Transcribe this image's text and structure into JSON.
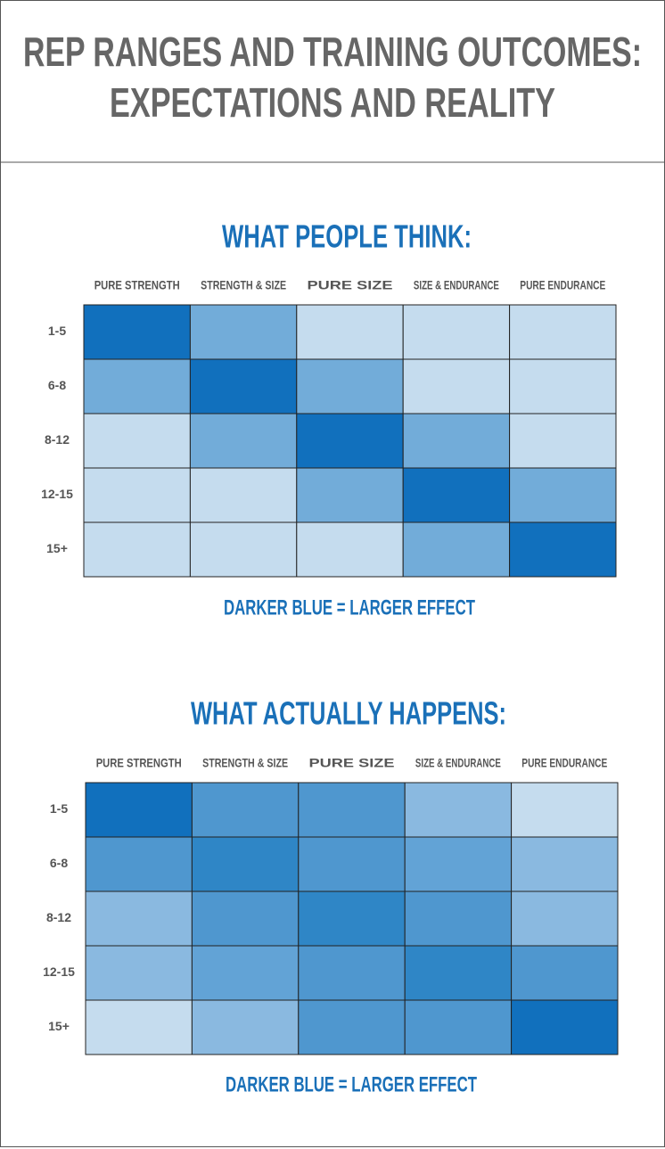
{
  "title": [
    "REP RANGES AND TRAINING OUTCOMES:",
    "EXPECTATIONS AND REALITY"
  ],
  "chart_data": [
    {
      "type": "heatmap",
      "title": "WHAT PEOPLE THINK:",
      "columns": [
        "PURE STRENGTH",
        "STRENGTH & SIZE",
        "PURE SIZE",
        "SIZE & ENDURANCE",
        "PURE ENDURANCE"
      ],
      "rows": [
        "1-5",
        "6-8",
        "8-12",
        "12-15",
        "15+"
      ],
      "colors": [
        [
          "#1170bd",
          "#72acd9",
          "#c5dcee",
          "#c5dcee",
          "#c5dcee"
        ],
        [
          "#72acd9",
          "#1170bd",
          "#72acd9",
          "#c5dcee",
          "#c5dcee"
        ],
        [
          "#c5dcee",
          "#72acd9",
          "#1170bd",
          "#72acd9",
          "#c5dcee"
        ],
        [
          "#c5dcee",
          "#c5dcee",
          "#72acd9",
          "#1170bd",
          "#72acd9"
        ],
        [
          "#c5dcee",
          "#c5dcee",
          "#c5dcee",
          "#72acd9",
          "#1170bd"
        ]
      ],
      "annotation": "DARKER BLUE = LARGER EFFECT"
    },
    {
      "type": "heatmap",
      "title": "WHAT ACTUALLY HAPPENS:",
      "columns": [
        "PURE STRENGTH",
        "STRENGTH & SIZE",
        "PURE SIZE",
        "SIZE & ENDURANCE",
        "PURE ENDURANCE"
      ],
      "rows": [
        "1-5",
        "6-8",
        "8-12",
        "12-15",
        "15+"
      ],
      "colors": [
        [
          "#1170bd",
          "#4f97cf",
          "#4f97cf",
          "#8ab9e0",
          "#c5dcee"
        ],
        [
          "#4f97cf",
          "#2f86c6",
          "#4f97cf",
          "#62a3d6",
          "#8ab9e0"
        ],
        [
          "#8ab9e0",
          "#4f97cf",
          "#2f86c6",
          "#4f97cf",
          "#8ab9e0"
        ],
        [
          "#8ab9e0",
          "#62a3d6",
          "#4f97cf",
          "#2f86c6",
          "#4f97cf"
        ],
        [
          "#c5dcee",
          "#8ab9e0",
          "#4f97cf",
          "#4f97cf",
          "#1170bd"
        ]
      ],
      "annotation": "DARKER BLUE = LARGER EFFECT"
    }
  ]
}
